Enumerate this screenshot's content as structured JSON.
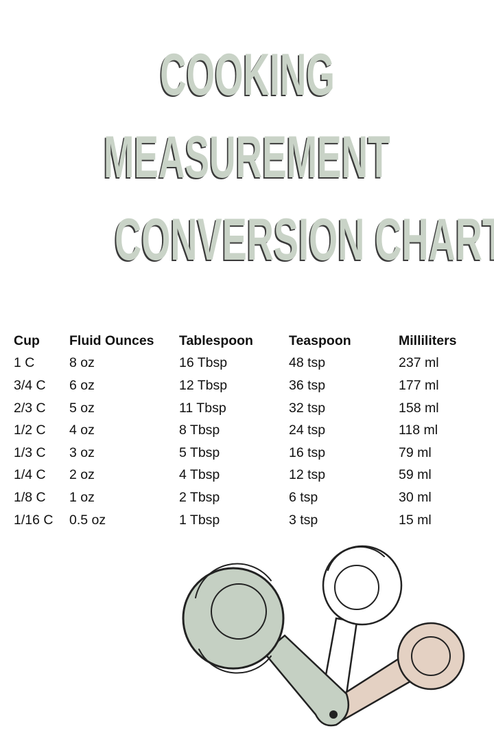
{
  "title": {
    "line1": "COOKING",
    "line2": "MEASUREMENT",
    "line3": "CONVERSION CHART"
  },
  "colors": {
    "title_fill": "#c9d3c7",
    "title_shadow": "#3a3a3a",
    "cup_green": "#c5d0c3",
    "cup_peach": "#e4d1c3",
    "cup_white": "#ffffff"
  },
  "table": {
    "headers": [
      "Cup",
      "Fluid Ounces",
      "Tablespoon",
      "Teaspoon",
      "Milliliters"
    ],
    "rows": [
      [
        "1 C",
        "8 oz",
        "16 Tbsp",
        "48 tsp",
        "237 ml"
      ],
      [
        "3/4 C",
        "6 oz",
        "12 Tbsp",
        "36 tsp",
        "177 ml"
      ],
      [
        "2/3 C",
        "5 oz",
        "11 Tbsp",
        "32 tsp",
        "158 ml"
      ],
      [
        "1/2 C",
        "4 oz",
        "8 Tbsp",
        "24 tsp",
        "118 ml"
      ],
      [
        "1/3 C",
        "3 oz",
        "5 Tbsp",
        "16 tsp",
        "79 ml"
      ],
      [
        "1/4 C",
        "2 oz",
        "4 Tbsp",
        "12 tsp",
        "59 ml"
      ],
      [
        "1/8 C",
        "1 oz",
        "2 Tbsp",
        "6 tsp",
        "30 ml"
      ],
      [
        "1/16 C",
        "0.5 oz",
        "1 Tbsp",
        "3 tsp",
        "15 ml"
      ]
    ]
  },
  "illustration": {
    "icon": "measuring-cups-icon"
  }
}
